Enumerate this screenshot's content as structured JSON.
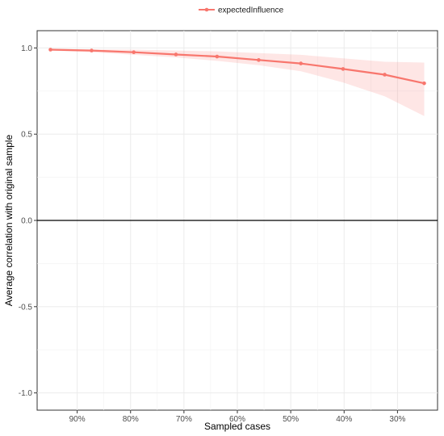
{
  "chart_data": {
    "type": "line",
    "title": "",
    "xlabel": "Sampled cases",
    "ylabel": "Average correlation with original sample",
    "x_reversed": true,
    "xlim": [
      0.225,
      0.975
    ],
    "ylim": [
      -1.1,
      1.1
    ],
    "x_ticks": [
      0.9,
      0.8,
      0.7,
      0.6,
      0.5,
      0.4,
      0.3
    ],
    "x_tick_labels": [
      "90%",
      "80%",
      "70%",
      "60%",
      "50%",
      "40%",
      "30%"
    ],
    "y_ticks": [
      1.0,
      0.5,
      0.0,
      -0.5,
      -1.0
    ],
    "y_tick_labels": [
      "1.0",
      "0.5",
      "0.0",
      "-0.5",
      "-1.0"
    ],
    "reference_line_y": 0.0,
    "grid": true,
    "legend": {
      "position": "top",
      "entries": [
        "expectedInfluence"
      ]
    },
    "series": [
      {
        "name": "expectedInfluence",
        "color": "#f8766d",
        "x": [
          0.95,
          0.873,
          0.794,
          0.715,
          0.638,
          0.56,
          0.481,
          0.402,
          0.324,
          0.25
        ],
        "y": [
          0.99,
          0.985,
          0.975,
          0.962,
          0.95,
          0.93,
          0.91,
          0.878,
          0.845,
          0.795
        ],
        "lower": [
          0.985,
          0.975,
          0.96,
          0.945,
          0.925,
          0.9,
          0.865,
          0.8,
          0.72,
          0.605
        ],
        "upper": [
          0.995,
          0.992,
          0.99,
          0.985,
          0.98,
          0.97,
          0.96,
          0.94,
          0.92,
          0.915
        ]
      }
    ]
  }
}
